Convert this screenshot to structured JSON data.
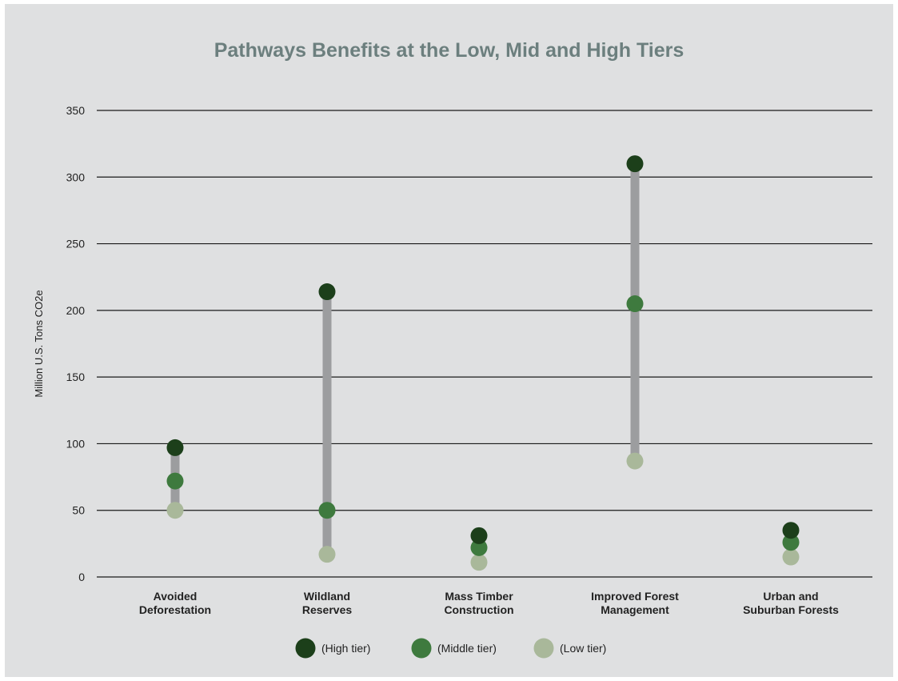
{
  "chart_data": {
    "type": "dot-range",
    "title": "Pathways Benefits at the Low, Mid and High Tiers",
    "ylabel": "Million U.S. Tons CO2e",
    "xlabel": "",
    "ylim": [
      0,
      350
    ],
    "yticks": [
      0,
      50,
      100,
      150,
      200,
      250,
      300,
      350
    ],
    "grid": true,
    "legend_position": "bottom",
    "categories": [
      [
        "Avoided",
        "Deforestation"
      ],
      [
        "Wildland",
        "Reserves"
      ],
      [
        "Mass Timber",
        "Construction"
      ],
      [
        "Improved Forest",
        "Management"
      ],
      [
        "Urban and",
        "Suburban Forests"
      ]
    ],
    "series": [
      {
        "name": "(High tier)",
        "color": "#1c3f1a",
        "values": [
          97,
          214,
          31,
          310,
          35
        ]
      },
      {
        "name": "(Middle tier)",
        "color": "#3e7a3e",
        "values": [
          72,
          50,
          22,
          205,
          26
        ]
      },
      {
        "name": "(Low tier)",
        "color": "#a9b89a",
        "values": [
          50,
          17,
          11,
          87,
          15
        ]
      }
    ],
    "range_bar_color": "#9c9d9f"
  }
}
